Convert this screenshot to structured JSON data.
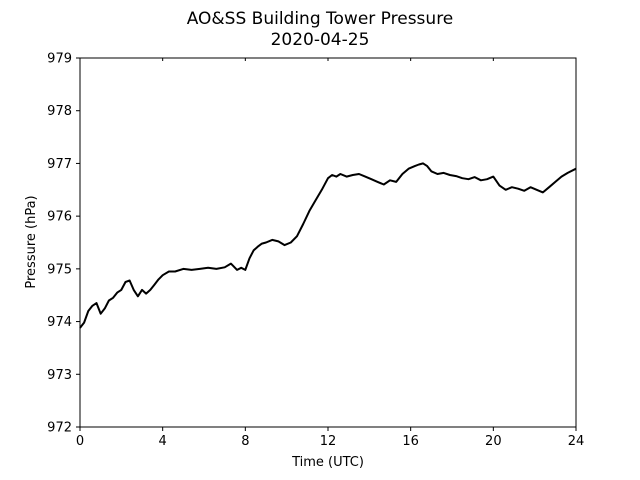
{
  "chart_data": {
    "type": "line",
    "title": "AO&SS Building Tower Pressure",
    "subtitle": "2020-04-25",
    "xlabel": "Time (UTC)",
    "ylabel": "Pressure (hPa)",
    "xlim": [
      0,
      24
    ],
    "ylim": [
      972,
      979
    ],
    "xticks": [
      0,
      4,
      8,
      12,
      16,
      20,
      24
    ],
    "yticks": [
      972,
      973,
      974,
      975,
      976,
      977,
      978,
      979
    ],
    "grid": false,
    "line_color": "#000000",
    "series": [
      {
        "x": [
          0,
          0.2,
          0.4,
          0.6,
          0.8,
          1.0,
          1.2,
          1.4,
          1.6,
          1.8,
          2.0,
          2.2,
          2.4,
          2.6,
          2.8,
          3.0,
          3.2,
          3.4,
          3.6,
          3.8,
          4.0,
          4.3,
          4.6,
          5.0,
          5.4,
          5.8,
          6.2,
          6.6,
          7.0,
          7.3,
          7.6,
          7.8,
          8.0,
          8.2,
          8.4,
          8.6,
          8.8,
          9.0,
          9.3,
          9.6,
          9.9,
          10.2,
          10.5,
          10.8,
          11.1,
          11.4,
          11.7,
          12.0,
          12.2,
          12.4,
          12.6,
          12.9,
          13.2,
          13.5,
          13.8,
          14.1,
          14.4,
          14.7,
          15.0,
          15.3,
          15.6,
          15.9,
          16.2,
          16.4,
          16.6,
          16.8,
          17.0,
          17.3,
          17.6,
          17.9,
          18.2,
          18.5,
          18.8,
          19.1,
          19.4,
          19.7,
          20.0,
          20.3,
          20.6,
          20.9,
          21.2,
          21.5,
          21.8,
          22.1,
          22.4,
          22.7,
          23.0,
          23.3,
          23.6,
          24.0
        ],
        "y": [
          973.88,
          973.98,
          974.2,
          974.3,
          974.35,
          974.15,
          974.25,
          974.4,
          974.45,
          974.55,
          974.6,
          974.75,
          974.78,
          974.6,
          974.48,
          974.6,
          974.53,
          974.6,
          974.7,
          974.8,
          974.88,
          974.95,
          974.95,
          975.0,
          974.98,
          975.0,
          975.02,
          975.0,
          975.03,
          975.1,
          974.98,
          975.02,
          974.98,
          975.2,
          975.35,
          975.42,
          975.48,
          975.5,
          975.55,
          975.52,
          975.45,
          975.5,
          975.62,
          975.85,
          976.1,
          976.3,
          976.5,
          976.72,
          976.78,
          976.75,
          976.8,
          976.75,
          976.78,
          976.8,
          976.75,
          976.7,
          976.65,
          976.6,
          976.68,
          976.65,
          976.8,
          976.9,
          976.95,
          976.98,
          977.0,
          976.95,
          976.85,
          976.8,
          976.82,
          976.78,
          976.76,
          976.72,
          976.7,
          976.74,
          976.68,
          976.7,
          976.75,
          976.58,
          976.5,
          976.55,
          976.52,
          976.48,
          976.55,
          976.5,
          976.45,
          976.55,
          976.65,
          976.75,
          976.82,
          976.9
        ]
      }
    ]
  }
}
